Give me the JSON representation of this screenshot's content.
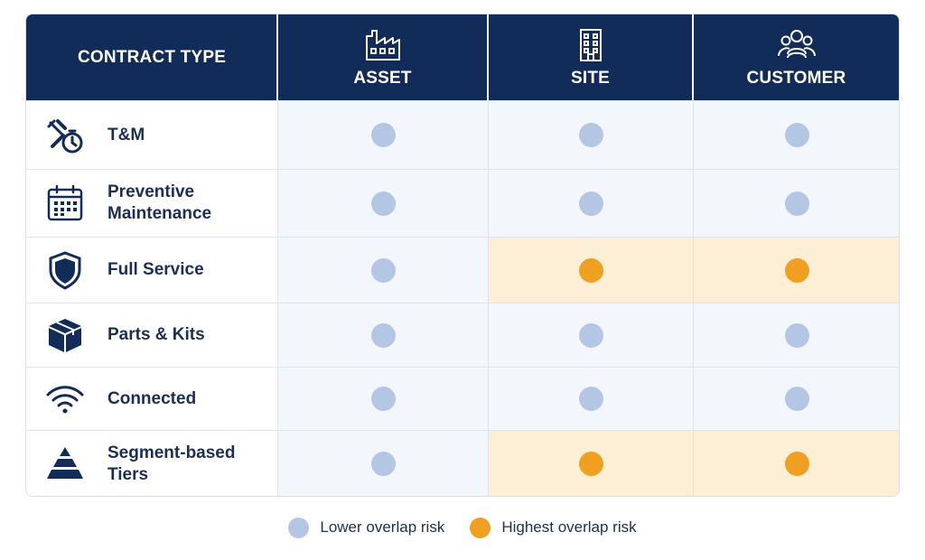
{
  "colors": {
    "header_bg": "#122c5a",
    "low": "#b3c6e3",
    "high": "#f0a020",
    "low_cell_bg": "#f3f6fb",
    "high_cell_bg": "#fdeed6",
    "text": "#1b2e55"
  },
  "header": {
    "contract_type": "CONTRACT TYPE",
    "columns": [
      {
        "label": "ASSET",
        "icon": "factory-icon"
      },
      {
        "label": "SITE",
        "icon": "building-icon"
      },
      {
        "label": "CUSTOMER",
        "icon": "customers-group-icon"
      }
    ]
  },
  "rows": [
    {
      "label": "T&M",
      "icon": "wrench-timer-icon",
      "levels": [
        "low",
        "low",
        "low"
      ]
    },
    {
      "label": "Preventive Maintenance",
      "icon": "calendar-icon",
      "levels": [
        "low",
        "low",
        "low"
      ]
    },
    {
      "label": "Full Service",
      "icon": "shield-icon",
      "levels": [
        "low",
        "high",
        "high"
      ]
    },
    {
      "label": "Parts & Kits",
      "icon": "box-icon",
      "levels": [
        "low",
        "low",
        "low"
      ]
    },
    {
      "label": "Connected",
      "icon": "wifi-icon",
      "levels": [
        "low",
        "low",
        "low"
      ]
    },
    {
      "label": "Segment-based Tiers",
      "icon": "pyramid-icon",
      "levels": [
        "low",
        "high",
        "high"
      ]
    }
  ],
  "legend": {
    "low_label": "Lower overlap risk",
    "high_label": "Highest overlap risk"
  }
}
